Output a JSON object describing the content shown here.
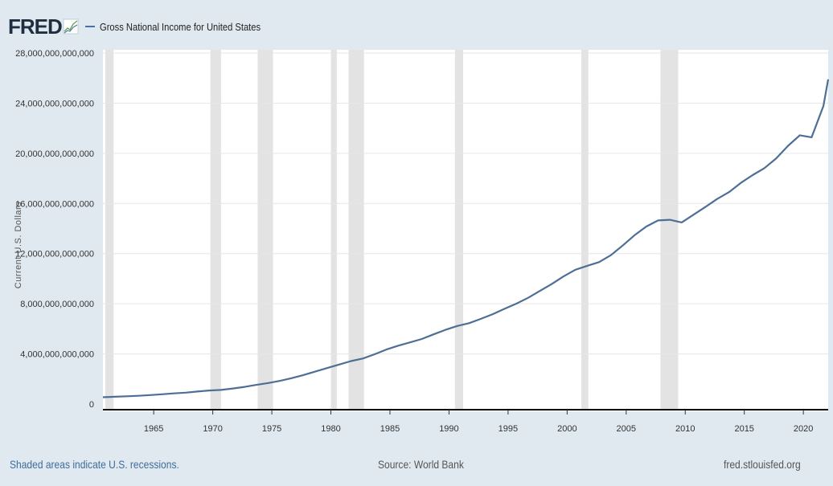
{
  "header": {
    "logo_text": "FRED",
    "series_label": "Gross National Income for United States"
  },
  "footer": {
    "recession_note": "Shaded areas indicate U.S. recessions.",
    "source": "Source: World Bank",
    "site": "fred.stlouisfed.org"
  },
  "colors": {
    "background": "#e1e9f0",
    "plot_background": "#ffffff",
    "series_line": "#4e6f95",
    "recession_shade": "#e3e3e3",
    "link": "#3e6d9c"
  },
  "chart_data": {
    "type": "line",
    "title": "",
    "xlabel": "",
    "ylabel": "Current U.S. Dollars",
    "xlim": [
      1960.7,
      2022.1
    ],
    "ylim": [
      0,
      28000000000000
    ],
    "x_ticks": [
      1965,
      1970,
      1975,
      1980,
      1985,
      1990,
      1995,
      2000,
      2005,
      2010,
      2015,
      2020
    ],
    "y_ticks": [
      0,
      4000000000000,
      8000000000000,
      12000000000000,
      16000000000000,
      20000000000000,
      24000000000000,
      28000000000000
    ],
    "y_tick_labels": [
      "0",
      "4,000,000,000,000",
      "8,000,000,000,000",
      "12,000,000,000,000",
      "16,000,000,000,000",
      "20,000,000,000,000",
      "24,000,000,000,000",
      "28,000,000,000,000"
    ],
    "grid": "horizontal",
    "recessions": [
      [
        1960.9,
        1961.6
      ],
      [
        1969.8,
        1970.7
      ],
      [
        1973.8,
        1975.1
      ],
      [
        1980.0,
        1980.5
      ],
      [
        1981.5,
        1982.8
      ],
      [
        1990.5,
        1991.2
      ],
      [
        2001.2,
        2001.8
      ],
      [
        2007.9,
        2009.4
      ]
    ],
    "series": [
      {
        "name": "Gross National Income for United States",
        "x": [
          1960.7,
          1961.7,
          1962.7,
          1963.7,
          1964.7,
          1965.7,
          1966.7,
          1967.7,
          1968.7,
          1969.7,
          1970.7,
          1971.7,
          1972.7,
          1973.7,
          1974.7,
          1975.7,
          1976.7,
          1977.7,
          1978.7,
          1979.7,
          1980.7,
          1981.7,
          1982.7,
          1983.7,
          1984.7,
          1985.7,
          1986.7,
          1987.7,
          1988.7,
          1989.7,
          1990.7,
          1991.7,
          1992.7,
          1993.7,
          1994.7,
          1995.7,
          1996.7,
          1997.7,
          1998.7,
          1999.7,
          2000.7,
          2001.7,
          2002.7,
          2003.7,
          2004.7,
          2005.7,
          2006.7,
          2007.7,
          2008.7,
          2009.7,
          2010.7,
          2011.7,
          2012.7,
          2013.7,
          2014.7,
          2015.7,
          2016.7,
          2017.7,
          2018.7,
          2019.7,
          2020.7,
          2021.7,
          2022.1
        ],
        "values": [
          545000000000,
          580000000000,
          620000000000,
          660000000000,
          720000000000,
          780000000000,
          850000000000,
          910000000000,
          1000000000000,
          1080000000000,
          1130000000000,
          1240000000000,
          1370000000000,
          1530000000000,
          1680000000000,
          1850000000000,
          2070000000000,
          2320000000000,
          2600000000000,
          2880000000000,
          3150000000000,
          3430000000000,
          3630000000000,
          3970000000000,
          4350000000000,
          4660000000000,
          4920000000000,
          5190000000000,
          5560000000000,
          5920000000000,
          6230000000000,
          6450000000000,
          6800000000000,
          7170000000000,
          7600000000000,
          8010000000000,
          8480000000000,
          9030000000000,
          9570000000000,
          10180000000000,
          10710000000000,
          11030000000000,
          11320000000000,
          11870000000000,
          12640000000000,
          13460000000000,
          14160000000000,
          14650000000000,
          14700000000000,
          14490000000000,
          15100000000000,
          15720000000000,
          16360000000000,
          16900000000000,
          17640000000000,
          18260000000000,
          18820000000000,
          19600000000000,
          20600000000000,
          21440000000000,
          21280000000000,
          23780000000000,
          25900000000000
        ]
      }
    ]
  }
}
